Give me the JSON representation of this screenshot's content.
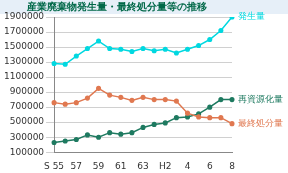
{
  "chart_data": {
    "type": "line",
    "title": "産業廃棄物発生量・最終処分量等の推移",
    "categories": [
      "S 55",
      null,
      "57",
      null,
      "59",
      null,
      "61",
      null,
      "63",
      null,
      "H2",
      null,
      "4",
      null,
      "6",
      null,
      "8"
    ],
    "series": [
      {
        "name": "発生量",
        "color": "#00d8e0",
        "marker": "circle",
        "line_style": "solid",
        "values": [
          1280000,
          1270000,
          1380000,
          1480000,
          1580000,
          1480000,
          1470000,
          1440000,
          1480000,
          1450000,
          1470000,
          1420000,
          1470000,
          1520000,
          1600000,
          1720000,
          1900000
        ]
      },
      {
        "name": "最終処分量",
        "color": "#e07850",
        "marker": "circle",
        "line_style": "solid",
        "values": [
          760000,
          740000,
          760000,
          820000,
          950000,
          860000,
          830000,
          790000,
          830000,
          800000,
          800000,
          780000,
          620000,
          570000,
          560000,
          560000,
          480000
        ]
      },
      {
        "name": "再資源化量",
        "color": "#1e7a60",
        "marker": "circle",
        "line_style": "solid",
        "values": [
          230000,
          250000,
          270000,
          330000,
          300000,
          360000,
          340000,
          360000,
          430000,
          470000,
          490000,
          560000,
          570000,
          610000,
          700000,
          800000,
          800000
        ]
      }
    ],
    "ylim": [
      100000,
      1900000
    ],
    "yticks": [
      100000,
      300000,
      500000,
      700000,
      900000,
      1100000,
      1300000,
      1500000,
      1700000,
      1900000
    ],
    "grid": true
  }
}
